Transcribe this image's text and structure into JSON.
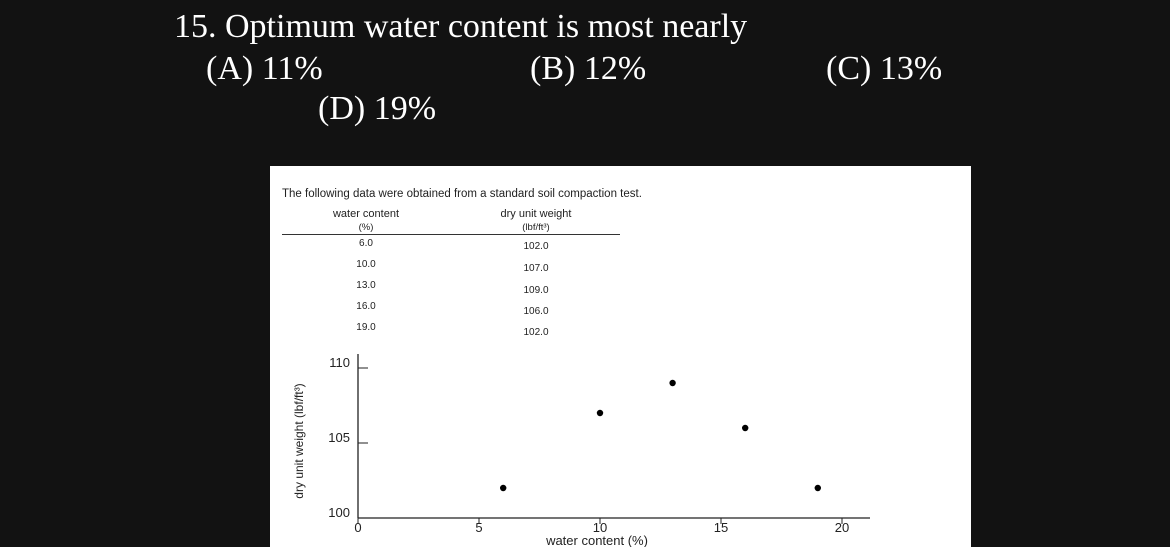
{
  "question": {
    "stem": "15. Optimum water content is most nearly",
    "options": [
      {
        "letter": "(A)",
        "text": "(A) 11%"
      },
      {
        "letter": "(B)",
        "text": "(B) 12%"
      },
      {
        "letter": "(C)",
        "text": "(C) 13%"
      },
      {
        "letter": "(D)",
        "text": "(D) 19%"
      }
    ]
  },
  "table": {
    "intro": "The following data were obtained from a standard soil compaction test.",
    "col1_header": "water content",
    "col1_unit": "(%)",
    "col2_header": "dry unit weight",
    "col2_unit": "(lbf/ft³)",
    "rows": [
      {
        "water": "6.0",
        "weight": "102.0"
      },
      {
        "water": "10.0",
        "weight": "107.0"
      },
      {
        "water": "13.0",
        "weight": "109.0"
      },
      {
        "water": "16.0",
        "weight": "106.0"
      },
      {
        "water": "19.0",
        "weight": "102.0"
      }
    ]
  },
  "chart_data": {
    "type": "scatter",
    "title": "",
    "xlabel": "water content (%)",
    "ylabel": "dry unit weight (lbf/ft³)",
    "x": [
      6,
      10,
      13,
      16,
      19
    ],
    "y": [
      102,
      107,
      109,
      106,
      102
    ],
    "xlim": [
      0,
      20
    ],
    "ylim": [
      100,
      110
    ],
    "xticks": [
      0,
      5,
      10,
      15,
      20
    ],
    "yticks": [
      100,
      105,
      110
    ],
    "xtick_labels": [
      "0",
      "5",
      "10",
      "15",
      "20"
    ],
    "ytick_labels": [
      "100",
      "105",
      "110"
    ],
    "grid": false,
    "color": "#000000"
  }
}
